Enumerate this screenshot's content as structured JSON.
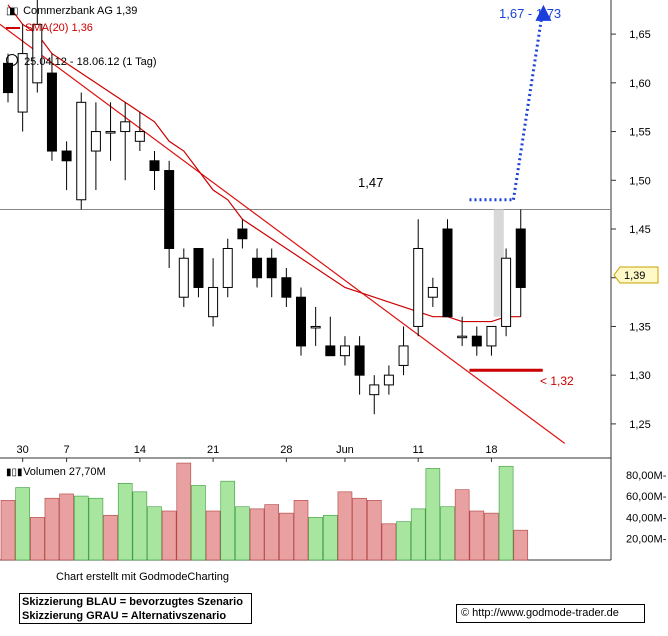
{
  "header": {
    "instrument_label": "Commerzbank AG 1,39",
    "sma_label": "SMA(20) 1,36",
    "range_label": "25.04.12 - 18.06.12 (1 Tag)"
  },
  "volume_header": "Volumen 27,70M",
  "annotations": {
    "level_147": "1,47",
    "target_label": "1,67 - 1,73",
    "support_label": "< 1,32",
    "last_price_tag": "1,39"
  },
  "footer": {
    "credit": "Chart erstellt mit GodmodeCharting",
    "legend_blue": "Skizzierung BLAU = bevorzugtes Szenario",
    "legend_gray": "Skizzierung GRAU = Alternativszenario",
    "url": "© http://www.godmode-trader.de"
  },
  "colors": {
    "up_candle": "#ffffff",
    "down_candle": "#000000",
    "sma": "#cc0000",
    "trendline": "#dd1111",
    "scenario_blue": "#1a3fdc",
    "vol_up": "#a8e6a0",
    "vol_down": "#e8a0a0",
    "gray_scenario": "#d8d8d8"
  },
  "chart_data": {
    "type": "candlestick",
    "price_axis": {
      "ylim": [
        1.215,
        1.685
      ],
      "ticks": [
        "1,65",
        "1,60",
        "1,55",
        "1,50",
        "1,45",
        "1,40",
        "1,35",
        "1,30",
        "1,25"
      ]
    },
    "x_ticks": [
      {
        "label": "30",
        "index": 1
      },
      {
        "label": "7",
        "index": 4
      },
      {
        "label": "14",
        "index": 9
      },
      {
        "label": "21",
        "index": 14
      },
      {
        "label": "28",
        "index": 19
      },
      {
        "label": "Jun",
        "index": 23
      },
      {
        "label": "11",
        "index": 28
      },
      {
        "label": "18",
        "index": 33
      }
    ],
    "candles": [
      {
        "o": 1.62,
        "h": 1.63,
        "l": 1.58,
        "c": 1.59
      },
      {
        "o": 1.57,
        "h": 1.66,
        "l": 1.55,
        "c": 1.63
      },
      {
        "o": 1.6,
        "h": 1.69,
        "l": 1.59,
        "c": 1.66
      },
      {
        "o": 1.61,
        "h": 1.63,
        "l": 1.52,
        "c": 1.53
      },
      {
        "o": 1.53,
        "h": 1.54,
        "l": 1.49,
        "c": 1.52
      },
      {
        "o": 1.48,
        "h": 1.59,
        "l": 1.47,
        "c": 1.58
      },
      {
        "o": 1.53,
        "h": 1.58,
        "l": 1.49,
        "c": 1.55
      },
      {
        "o": 1.55,
        "h": 1.58,
        "l": 1.52,
        "c": 1.55
      },
      {
        "o": 1.55,
        "h": 1.58,
        "l": 1.5,
        "c": 1.56
      },
      {
        "o": 1.54,
        "h": 1.57,
        "l": 1.53,
        "c": 1.55
      },
      {
        "o": 1.52,
        "h": 1.53,
        "l": 1.49,
        "c": 1.51
      },
      {
        "o": 1.51,
        "h": 1.52,
        "l": 1.41,
        "c": 1.43
      },
      {
        "o": 1.38,
        "h": 1.43,
        "l": 1.37,
        "c": 1.42
      },
      {
        "o": 1.43,
        "h": 1.43,
        "l": 1.38,
        "c": 1.39
      },
      {
        "o": 1.36,
        "h": 1.42,
        "l": 1.35,
        "c": 1.39
      },
      {
        "o": 1.39,
        "h": 1.44,
        "l": 1.38,
        "c": 1.43
      },
      {
        "o": 1.45,
        "h": 1.46,
        "l": 1.43,
        "c": 1.44
      },
      {
        "o": 1.42,
        "h": 1.43,
        "l": 1.39,
        "c": 1.4
      },
      {
        "o": 1.42,
        "h": 1.43,
        "l": 1.38,
        "c": 1.4
      },
      {
        "o": 1.4,
        "h": 1.41,
        "l": 1.37,
        "c": 1.38
      },
      {
        "o": 1.38,
        "h": 1.39,
        "l": 1.32,
        "c": 1.33
      },
      {
        "o": 1.35,
        "h": 1.37,
        "l": 1.33,
        "c": 1.35
      },
      {
        "o": 1.33,
        "h": 1.36,
        "l": 1.32,
        "c": 1.32
      },
      {
        "o": 1.32,
        "h": 1.34,
        "l": 1.31,
        "c": 1.33
      },
      {
        "o": 1.33,
        "h": 1.34,
        "l": 1.28,
        "c": 1.3
      },
      {
        "o": 1.28,
        "h": 1.3,
        "l": 1.26,
        "c": 1.29
      },
      {
        "o": 1.29,
        "h": 1.31,
        "l": 1.28,
        "c": 1.3
      },
      {
        "o": 1.31,
        "h": 1.35,
        "l": 1.3,
        "c": 1.33
      },
      {
        "o": 1.35,
        "h": 1.46,
        "l": 1.34,
        "c": 1.43
      },
      {
        "o": 1.38,
        "h": 1.4,
        "l": 1.37,
        "c": 1.39
      },
      {
        "o": 1.45,
        "h": 1.46,
        "l": 1.36,
        "c": 1.36
      },
      {
        "o": 1.34,
        "h": 1.36,
        "l": 1.33,
        "c": 1.34
      },
      {
        "o": 1.34,
        "h": 1.35,
        "l": 1.32,
        "c": 1.33
      },
      {
        "o": 1.33,
        "h": 1.35,
        "l": 1.32,
        "c": 1.35
      },
      {
        "o": 1.35,
        "h": 1.43,
        "l": 1.34,
        "c": 1.42
      },
      {
        "o": 1.45,
        "h": 1.47,
        "l": 1.36,
        "c": 1.39
      }
    ],
    "sma20": [
      1.68,
      1.66,
      1.65,
      1.63,
      1.62,
      1.61,
      1.6,
      1.59,
      1.58,
      1.57,
      1.56,
      1.54,
      1.53,
      1.51,
      1.49,
      1.48,
      1.46,
      1.45,
      1.44,
      1.43,
      1.42,
      1.41,
      1.4,
      1.39,
      1.385,
      1.38,
      1.375,
      1.37,
      1.365,
      1.36,
      1.36,
      1.355,
      1.355,
      1.355,
      1.36,
      1.36
    ],
    "trendline": {
      "start": {
        "index": -1,
        "value": 1.665
      },
      "end": {
        "index": 38,
        "value": 1.23
      }
    },
    "resistance_level": 1.47,
    "support_line": {
      "value": 1.305,
      "from_index": 31.5,
      "to_index": 36.5
    },
    "blue_scenario": {
      "level": 1.48,
      "from_index": 31.5,
      "to_index": 34.5,
      "target": 1.68
    },
    "gray_scenario": {
      "from": 1.47,
      "to": 1.36,
      "index": 33.5
    },
    "volume_axis": {
      "ylim": [
        0,
        92
      ],
      "ticks": [
        "80,00M-",
        "60,00M-",
        "40,00M-",
        "20,00M-"
      ]
    },
    "volume": [
      {
        "v": 56,
        "up": false
      },
      {
        "v": 68,
        "up": true
      },
      {
        "v": 40,
        "up": false
      },
      {
        "v": 58,
        "up": false
      },
      {
        "v": 62,
        "up": false
      },
      {
        "v": 60,
        "up": true
      },
      {
        "v": 58,
        "up": true
      },
      {
        "v": 42,
        "up": false
      },
      {
        "v": 72,
        "up": true
      },
      {
        "v": 64,
        "up": true
      },
      {
        "v": 50,
        "up": true
      },
      {
        "v": 46,
        "up": false
      },
      {
        "v": 91,
        "up": false
      },
      {
        "v": 70,
        "up": true
      },
      {
        "v": 46,
        "up": false
      },
      {
        "v": 74,
        "up": true
      },
      {
        "v": 50,
        "up": true
      },
      {
        "v": 48,
        "up": false
      },
      {
        "v": 52,
        "up": false
      },
      {
        "v": 44,
        "up": false
      },
      {
        "v": 56,
        "up": false
      },
      {
        "v": 40,
        "up": true
      },
      {
        "v": 42,
        "up": true
      },
      {
        "v": 64,
        "up": false
      },
      {
        "v": 58,
        "up": false
      },
      {
        "v": 56,
        "up": false
      },
      {
        "v": 34,
        "up": false
      },
      {
        "v": 36,
        "up": true
      },
      {
        "v": 48,
        "up": true
      },
      {
        "v": 86,
        "up": true
      },
      {
        "v": 50,
        "up": true
      },
      {
        "v": 66,
        "up": false
      },
      {
        "v": 46,
        "up": false
      },
      {
        "v": 44,
        "up": false
      },
      {
        "v": 88,
        "up": true
      },
      {
        "v": 28,
        "up": false
      }
    ]
  }
}
